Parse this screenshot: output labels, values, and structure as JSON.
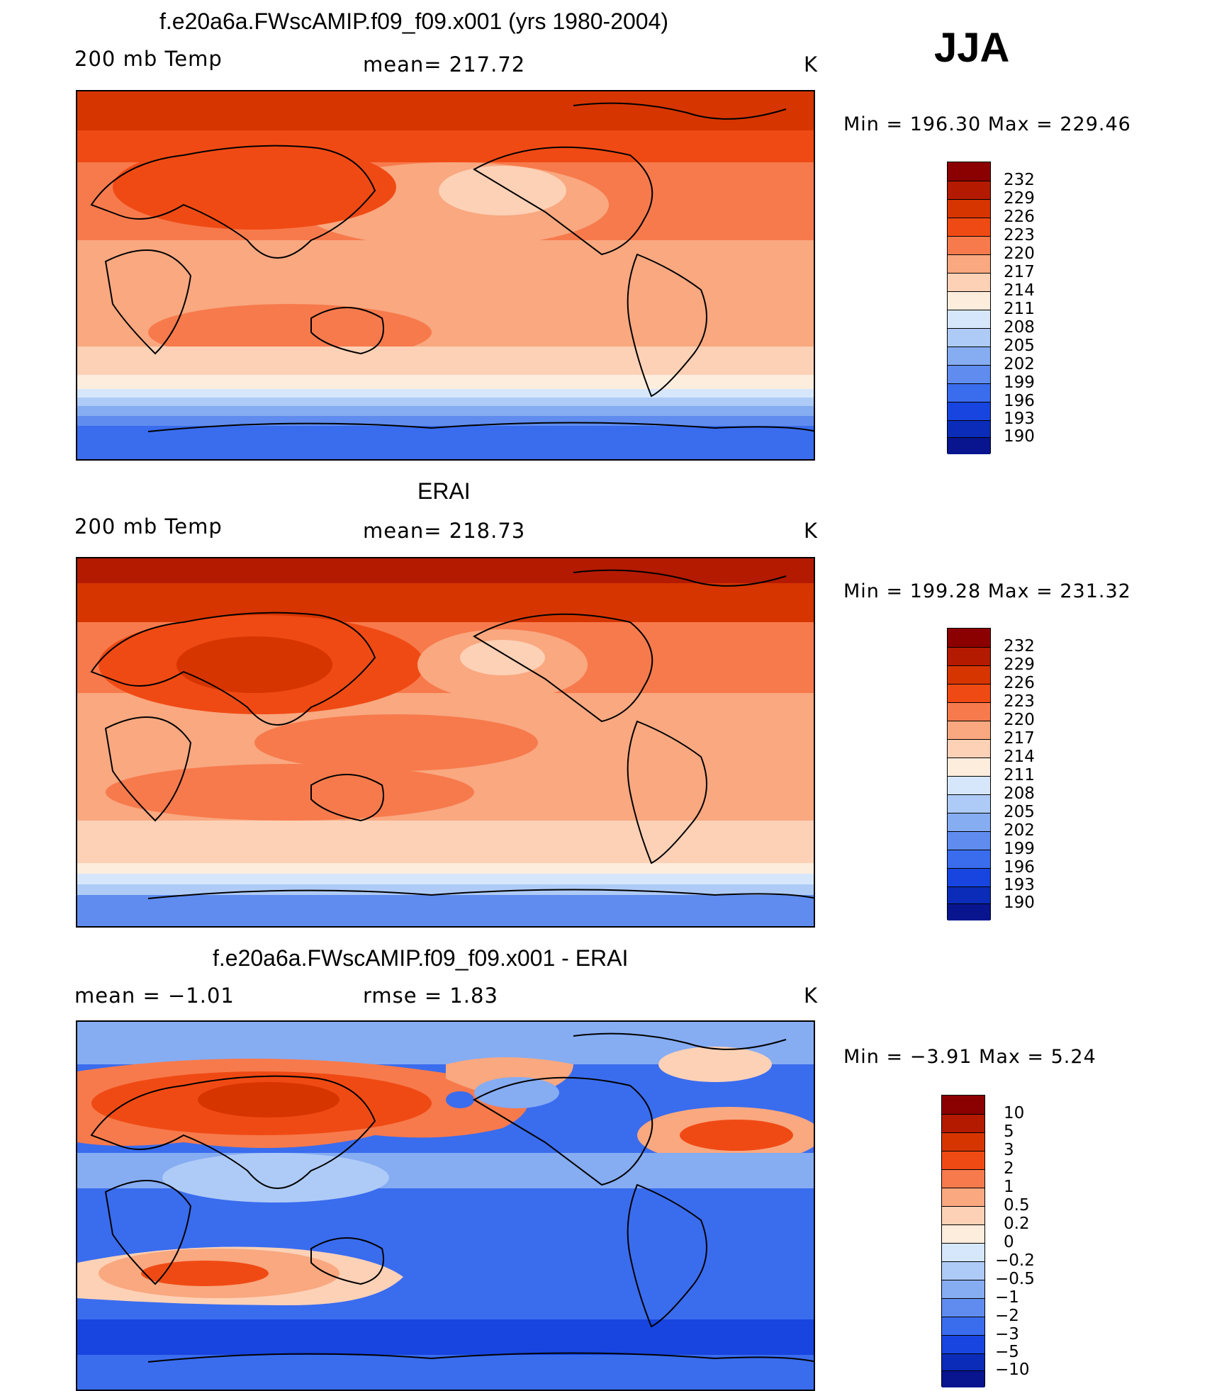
{
  "season": "JJA",
  "units": "K",
  "panels": [
    {
      "title": "f.e20a6a.FWscAMIP.f09_f09.x001 (yrs 1980-2004)",
      "variable": "200 mb Temp",
      "stat_text": "mean= 217.72",
      "units": "K",
      "minmax_text": "Min  =  196.30  Max  =  229.46"
    },
    {
      "title": "ERAI",
      "variable": "200 mb Temp",
      "stat_text": "mean= 218.73",
      "units": "K",
      "minmax_text": "Min  =  199.28  Max  =  231.32"
    },
    {
      "title": "f.e20a6a.FWscAMIP.f09_f09.x001 - ERAI",
      "mean_text": "mean =   −1.01",
      "rmse_text": "rmse =    1.83",
      "units": "K",
      "minmax_text": "Min  =   −3.91  Max  =     5.24"
    }
  ],
  "chart_data": [
    {
      "type": "heatmap",
      "title": "f.e20a6a.FWscAMIP.f09_f09.x001 (yrs 1980-2004)",
      "field": "200 mb Temp",
      "units": "K",
      "mean": 217.72,
      "min": 196.3,
      "max": 229.46,
      "colorbar_levels": [
        "232",
        "229",
        "226",
        "223",
        "220",
        "217",
        "214",
        "211",
        "208",
        "205",
        "202",
        "199",
        "196",
        "193",
        "190"
      ],
      "colorbar_colors": [
        "#8b0000",
        "#b31a00",
        "#d63500",
        "#f04a14",
        "#f77a4c",
        "#f9a880",
        "#fdd1b6",
        "#fdeddd",
        "#d6e7fb",
        "#aecbf7",
        "#86acf2",
        "#5f8cee",
        "#3a6cee",
        "#1845e0",
        "#0a2cb8",
        "#08158f"
      ]
    },
    {
      "type": "heatmap",
      "title": "ERAI",
      "field": "200 mb Temp",
      "units": "K",
      "mean": 218.73,
      "min": 199.28,
      "max": 231.32,
      "colorbar_levels": [
        "232",
        "229",
        "226",
        "223",
        "220",
        "217",
        "214",
        "211",
        "208",
        "205",
        "202",
        "199",
        "196",
        "193",
        "190"
      ],
      "colorbar_colors": [
        "#8b0000",
        "#b31a00",
        "#d63500",
        "#f04a14",
        "#f77a4c",
        "#f9a880",
        "#fdd1b6",
        "#fdeddd",
        "#d6e7fb",
        "#aecbf7",
        "#86acf2",
        "#5f8cee",
        "#3a6cee",
        "#1845e0",
        "#0a2cb8",
        "#08158f"
      ]
    },
    {
      "type": "heatmap",
      "title": "f.e20a6a.FWscAMIP.f09_f09.x001 - ERAI",
      "field": "200 mb Temp difference",
      "units": "K",
      "mean": -1.01,
      "rmse": 1.83,
      "min": -3.91,
      "max": 5.24,
      "colorbar_levels": [
        "10",
        "5",
        "3",
        "2",
        "1",
        "0.5",
        "0.2",
        "0",
        "−0.2",
        "−0.5",
        "−1",
        "−2",
        "−3",
        "−5",
        "−10"
      ],
      "colorbar_colors": [
        "#8b0000",
        "#b31a00",
        "#d63500",
        "#f04a14",
        "#f77a4c",
        "#f9a880",
        "#fdd1b6",
        "#fdeddd",
        "#d6e7fb",
        "#aecbf7",
        "#86acf2",
        "#5f8cee",
        "#3a6cee",
        "#1845e0",
        "#0a2cb8",
        "#08158f"
      ]
    }
  ]
}
